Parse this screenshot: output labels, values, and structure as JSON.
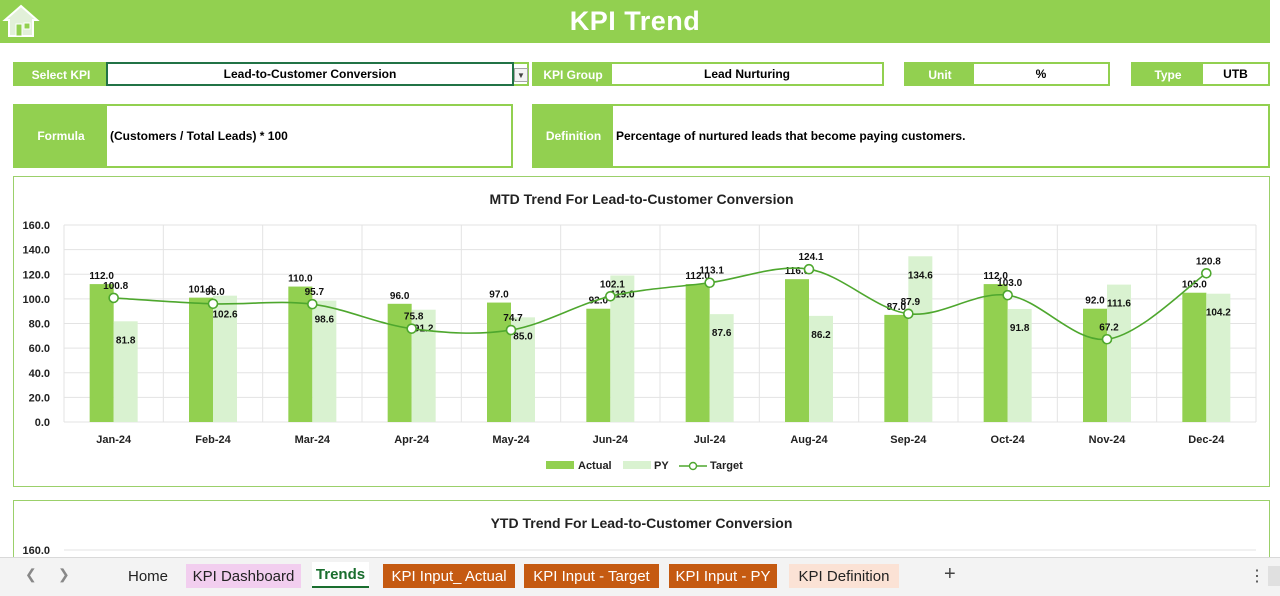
{
  "header": {
    "title": "KPI Trend"
  },
  "selectors": {
    "select_kpi_label": "Select KPI",
    "select_kpi_value": "Lead-to-Customer Conversion",
    "kpi_group_label": "KPI Group",
    "kpi_group_value": "Lead Nurturing",
    "unit_label": "Unit",
    "unit_value": "%",
    "type_label": "Type",
    "type_value": "UTB"
  },
  "formula": {
    "label": "Formula",
    "value": "(Customers / Total Leads) * 100"
  },
  "definition": {
    "label": "Definition",
    "value": "Percentage of nurtured leads that become paying customers."
  },
  "colors": {
    "accent": "#92D050",
    "actual": "#92D050",
    "py": "#D9F2D0",
    "target": "#4EA72E"
  },
  "chart_data": [
    {
      "type": "bar",
      "title": "MTD Trend For Lead-to-Customer Conversion",
      "categories": [
        "Jan-24",
        "Feb-24",
        "Mar-24",
        "Apr-24",
        "May-24",
        "Jun-24",
        "Jul-24",
        "Aug-24",
        "Sep-24",
        "Oct-24",
        "Nov-24",
        "Dec-24"
      ],
      "series": [
        {
          "name": "Actual",
          "kind": "bar",
          "values": [
            112.0,
            101.0,
            110.0,
            96.0,
            97.0,
            92.0,
            112.0,
            116.0,
            87.0,
            112.0,
            92.0,
            105.0
          ]
        },
        {
          "name": "PY",
          "kind": "bar",
          "values": [
            81.8,
            102.6,
            98.6,
            91.2,
            85.0,
            119.0,
            87.6,
            86.2,
            134.6,
            91.8,
            111.6,
            104.2
          ]
        },
        {
          "name": "Target",
          "kind": "line",
          "values": [
            100.8,
            96.0,
            95.7,
            75.8,
            74.7,
            102.1,
            113.1,
            124.1,
            87.9,
            103.0,
            67.2,
            120.8
          ]
        }
      ],
      "y_ticks": [
        "0.0",
        "20.0",
        "40.0",
        "60.0",
        "80.0",
        "100.0",
        "120.0",
        "140.0",
        "160.0"
      ],
      "ylim": [
        0,
        160
      ],
      "grid": true,
      "legend_placement": "bottom"
    },
    {
      "type": "bar",
      "title": "YTD Trend For Lead-to-Customer Conversion",
      "y_ticks": [
        "160.0"
      ],
      "ylim": [
        0,
        160
      ]
    }
  ],
  "tabs": [
    {
      "label": "Home",
      "bg": "#f3f3f3",
      "color": "#222"
    },
    {
      "label": "KPI Dashboard",
      "bg": "#F2CEEF",
      "color": "#222"
    },
    {
      "label": "Trends",
      "bg": "#ffffff",
      "color": "#1a6e2e",
      "active": true
    },
    {
      "label": "KPI Input_ Actual",
      "bg": "#C55A11",
      "color": "#ffffff"
    },
    {
      "label": "KPI Input - Target",
      "bg": "#C55A11",
      "color": "#ffffff"
    },
    {
      "label": "KPI Input - PY",
      "bg": "#C55A11",
      "color": "#ffffff"
    },
    {
      "label": "KPI Definition",
      "bg": "#FBE2D5",
      "color": "#222"
    }
  ],
  "icons": {
    "home": "home-icon",
    "prev": "chevron-left-icon",
    "next": "chevron-right-icon",
    "add": "plus-icon",
    "more": "more-vertical-icon"
  }
}
